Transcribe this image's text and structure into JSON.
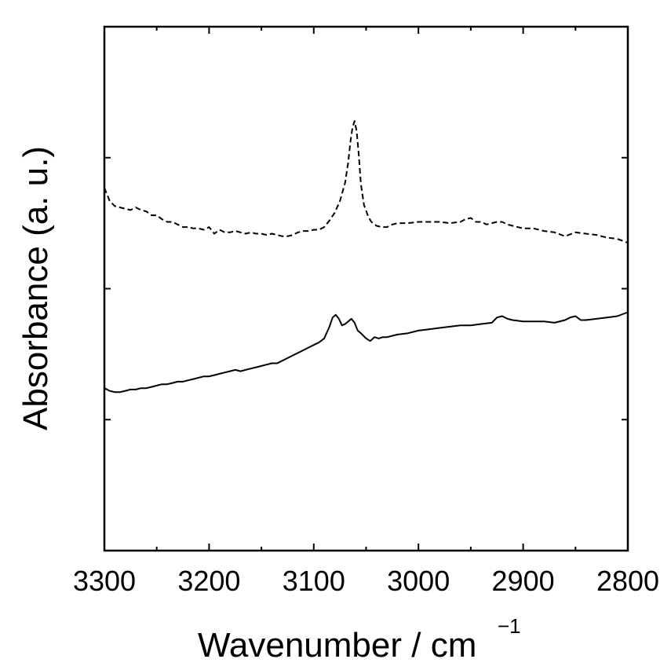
{
  "chart_data": {
    "type": "line",
    "xlabel": "Wavenumber / cm",
    "xlabel_superscript": "−1",
    "ylabel": "Absorbance (a. u.)",
    "xlim": [
      3300,
      2800
    ],
    "ylim": [
      0,
      4
    ],
    "x_direction": "reversed",
    "x_ticks": [
      3300,
      3200,
      3100,
      3000,
      2900,
      2800
    ],
    "x_tick_labels": [
      "3300",
      "3200",
      "3100",
      "3000",
      "2900",
      "2800"
    ],
    "y_tick_labels_shown": false,
    "grid": false,
    "legend": "none",
    "series": [
      {
        "style": "dashed",
        "color": "#000000",
        "points": [
          [
            3300,
            2.77
          ],
          [
            3295,
            2.67
          ],
          [
            3290,
            2.63
          ],
          [
            3285,
            2.62
          ],
          [
            3280,
            2.61
          ],
          [
            3275,
            2.6
          ],
          [
            3270,
            2.62
          ],
          [
            3265,
            2.6
          ],
          [
            3260,
            2.59
          ],
          [
            3255,
            2.56
          ],
          [
            3250,
            2.56
          ],
          [
            3245,
            2.53
          ],
          [
            3240,
            2.51
          ],
          [
            3235,
            2.51
          ],
          [
            3230,
            2.49
          ],
          [
            3225,
            2.47
          ],
          [
            3220,
            2.47
          ],
          [
            3215,
            2.46
          ],
          [
            3210,
            2.46
          ],
          [
            3205,
            2.45
          ],
          [
            3200,
            2.47
          ],
          [
            3195,
            2.42
          ],
          [
            3190,
            2.45
          ],
          [
            3185,
            2.43
          ],
          [
            3180,
            2.43
          ],
          [
            3175,
            2.44
          ],
          [
            3170,
            2.43
          ],
          [
            3165,
            2.42
          ],
          [
            3160,
            2.43
          ],
          [
            3155,
            2.42
          ],
          [
            3150,
            2.42
          ],
          [
            3145,
            2.41
          ],
          [
            3140,
            2.42
          ],
          [
            3135,
            2.41
          ],
          [
            3130,
            2.4
          ],
          [
            3125,
            2.4
          ],
          [
            3120,
            2.41
          ],
          [
            3115,
            2.43
          ],
          [
            3110,
            2.44
          ],
          [
            3105,
            2.44
          ],
          [
            3100,
            2.45
          ],
          [
            3095,
            2.45
          ],
          [
            3090,
            2.47
          ],
          [
            3085,
            2.52
          ],
          [
            3080,
            2.58
          ],
          [
            3075,
            2.67
          ],
          [
            3070,
            2.81
          ],
          [
            3067,
            2.97
          ],
          [
            3065,
            3.12
          ],
          [
            3063,
            3.23
          ],
          [
            3061,
            3.28
          ],
          [
            3059,
            3.2
          ],
          [
            3057,
            3.02
          ],
          [
            3055,
            2.8
          ],
          [
            3052,
            2.64
          ],
          [
            3048,
            2.55
          ],
          [
            3045,
            2.51
          ],
          [
            3040,
            2.48
          ],
          [
            3035,
            2.47
          ],
          [
            3030,
            2.47
          ],
          [
            3025,
            2.49
          ],
          [
            3020,
            2.5
          ],
          [
            3010,
            2.5
          ],
          [
            3000,
            2.51
          ],
          [
            2990,
            2.51
          ],
          [
            2980,
            2.51
          ],
          [
            2970,
            2.5
          ],
          [
            2960,
            2.51
          ],
          [
            2955,
            2.53
          ],
          [
            2950,
            2.54
          ],
          [
            2945,
            2.51
          ],
          [
            2940,
            2.51
          ],
          [
            2935,
            2.49
          ],
          [
            2930,
            2.5
          ],
          [
            2925,
            2.51
          ],
          [
            2920,
            2.51
          ],
          [
            2915,
            2.49
          ],
          [
            2910,
            2.48
          ],
          [
            2900,
            2.46
          ],
          [
            2890,
            2.46
          ],
          [
            2880,
            2.44
          ],
          [
            2870,
            2.43
          ],
          [
            2860,
            2.4
          ],
          [
            2850,
            2.43
          ],
          [
            2840,
            2.42
          ],
          [
            2830,
            2.41
          ],
          [
            2820,
            2.39
          ],
          [
            2810,
            2.38
          ],
          [
            2800,
            2.35
          ]
        ]
      },
      {
        "style": "solid",
        "color": "#000000",
        "points": [
          [
            3300,
            1.24
          ],
          [
            3295,
            1.22
          ],
          [
            3290,
            1.21
          ],
          [
            3285,
            1.21
          ],
          [
            3280,
            1.22
          ],
          [
            3275,
            1.23
          ],
          [
            3270,
            1.23
          ],
          [
            3265,
            1.24
          ],
          [
            3260,
            1.24
          ],
          [
            3255,
            1.25
          ],
          [
            3250,
            1.26
          ],
          [
            3245,
            1.27
          ],
          [
            3240,
            1.27
          ],
          [
            3235,
            1.28
          ],
          [
            3230,
            1.29
          ],
          [
            3225,
            1.29
          ],
          [
            3220,
            1.3
          ],
          [
            3215,
            1.31
          ],
          [
            3210,
            1.32
          ],
          [
            3205,
            1.33
          ],
          [
            3200,
            1.33
          ],
          [
            3195,
            1.34
          ],
          [
            3190,
            1.35
          ],
          [
            3185,
            1.36
          ],
          [
            3180,
            1.37
          ],
          [
            3175,
            1.38
          ],
          [
            3170,
            1.37
          ],
          [
            3165,
            1.38
          ],
          [
            3160,
            1.39
          ],
          [
            3155,
            1.4
          ],
          [
            3150,
            1.41
          ],
          [
            3145,
            1.42
          ],
          [
            3140,
            1.43
          ],
          [
            3135,
            1.43
          ],
          [
            3130,
            1.45
          ],
          [
            3125,
            1.47
          ],
          [
            3120,
            1.49
          ],
          [
            3115,
            1.51
          ],
          [
            3110,
            1.53
          ],
          [
            3105,
            1.55
          ],
          [
            3100,
            1.57
          ],
          [
            3095,
            1.59
          ],
          [
            3090,
            1.62
          ],
          [
            3085,
            1.71
          ],
          [
            3082,
            1.78
          ],
          [
            3079,
            1.8
          ],
          [
            3076,
            1.77
          ],
          [
            3073,
            1.72
          ],
          [
            3070,
            1.73
          ],
          [
            3067,
            1.75
          ],
          [
            3064,
            1.77
          ],
          [
            3061,
            1.74
          ],
          [
            3058,
            1.68
          ],
          [
            3055,
            1.66
          ],
          [
            3050,
            1.62
          ],
          [
            3046,
            1.6
          ],
          [
            3042,
            1.63
          ],
          [
            3038,
            1.62
          ],
          [
            3034,
            1.63
          ],
          [
            3030,
            1.63
          ],
          [
            3020,
            1.65
          ],
          [
            3010,
            1.66
          ],
          [
            3000,
            1.68
          ],
          [
            2990,
            1.69
          ],
          [
            2980,
            1.7
          ],
          [
            2970,
            1.71
          ],
          [
            2960,
            1.72
          ],
          [
            2950,
            1.72
          ],
          [
            2940,
            1.73
          ],
          [
            2930,
            1.74
          ],
          [
            2925,
            1.78
          ],
          [
            2920,
            1.79
          ],
          [
            2915,
            1.77
          ],
          [
            2910,
            1.76
          ],
          [
            2900,
            1.75
          ],
          [
            2890,
            1.75
          ],
          [
            2880,
            1.75
          ],
          [
            2870,
            1.74
          ],
          [
            2860,
            1.76
          ],
          [
            2855,
            1.78
          ],
          [
            2850,
            1.79
          ],
          [
            2845,
            1.76
          ],
          [
            2840,
            1.76
          ],
          [
            2830,
            1.77
          ],
          [
            2820,
            1.78
          ],
          [
            2810,
            1.79
          ],
          [
            2800,
            1.82
          ]
        ]
      }
    ]
  }
}
